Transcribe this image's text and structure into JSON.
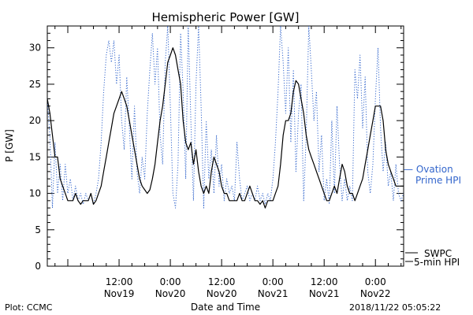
{
  "chart_data": {
    "type": "line",
    "title": "Hemispheric Power [GW]",
    "xlabel": "Date and Time",
    "ylabel": "P [GW]",
    "ylim": [
      0,
      33
    ],
    "xlim": [
      -4.8,
      78.6
    ],
    "x_units": "hours since 2018-11-19 00:00 UTC",
    "yticks": [
      0,
      5,
      10,
      15,
      20,
      25,
      30
    ],
    "xticks": [
      {
        "x": 12,
        "time": "12:00",
        "date": "Nov19"
      },
      {
        "x": 24,
        "time": "0:00",
        "date": "Nov20"
      },
      {
        "x": 36,
        "time": "12:00",
        "date": "Nov20"
      },
      {
        "x": 48,
        "time": "0:00",
        "date": "Nov21"
      },
      {
        "x": 60,
        "time": "12:00",
        "date": "Nov21"
      },
      {
        "x": 72,
        "time": "0:00",
        "date": "Nov22"
      }
    ],
    "grid": false,
    "series": [
      {
        "name": "Ovation Prime HPI",
        "legend_line1": "— Ovation",
        "legend_line2": "Prime HPI",
        "style": "dotted",
        "color": "#3366cc",
        "points": [
          [
            -4.8,
            23
          ],
          [
            -4.2,
            18
          ],
          [
            -3.6,
            8
          ],
          [
            -3.0,
            17
          ],
          [
            -2.4,
            10
          ],
          [
            -1.8,
            14
          ],
          [
            -1.2,
            9
          ],
          [
            -0.6,
            14
          ],
          [
            0.0,
            10
          ],
          [
            0.6,
            12
          ],
          [
            1.2,
            9
          ],
          [
            1.8,
            11
          ],
          [
            2.4,
            9
          ],
          [
            3.0,
            10
          ],
          [
            3.6,
            8.5
          ],
          [
            4.2,
            10
          ],
          [
            4.8,
            9
          ],
          [
            5.4,
            10
          ],
          [
            6.0,
            8.5
          ],
          [
            6.6,
            10
          ],
          [
            7.2,
            12
          ],
          [
            7.8,
            17
          ],
          [
            8.4,
            24
          ],
          [
            9.0,
            29
          ],
          [
            9.6,
            31
          ],
          [
            10.2,
            28
          ],
          [
            10.8,
            31
          ],
          [
            11.4,
            25
          ],
          [
            12.0,
            29
          ],
          [
            12.6,
            20
          ],
          [
            13.2,
            16
          ],
          [
            13.8,
            26
          ],
          [
            14.4,
            19
          ],
          [
            15.0,
            12
          ],
          [
            15.6,
            22
          ],
          [
            16.2,
            13
          ],
          [
            16.8,
            10
          ],
          [
            17.4,
            15
          ],
          [
            18.0,
            12
          ],
          [
            18.6,
            21
          ],
          [
            19.2,
            27
          ],
          [
            19.8,
            32
          ],
          [
            20.4,
            25
          ],
          [
            21.0,
            30
          ],
          [
            21.6,
            18
          ],
          [
            22.2,
            14
          ],
          [
            22.8,
            28
          ],
          [
            23.4,
            33
          ],
          [
            24.0,
            22
          ],
          [
            24.6,
            10
          ],
          [
            25.2,
            8
          ],
          [
            25.8,
            14
          ],
          [
            26.4,
            32
          ],
          [
            27.0,
            24
          ],
          [
            27.6,
            12
          ],
          [
            28.2,
            33
          ],
          [
            28.8,
            20
          ],
          [
            29.4,
            9
          ],
          [
            30.0,
            25
          ],
          [
            30.6,
            33
          ],
          [
            31.2,
            22
          ],
          [
            31.8,
            8
          ],
          [
            32.4,
            20
          ],
          [
            33.0,
            12
          ],
          [
            33.6,
            16
          ],
          [
            34.2,
            10
          ],
          [
            34.8,
            18
          ],
          [
            35.4,
            11
          ],
          [
            36.0,
            14
          ],
          [
            36.6,
            9
          ],
          [
            37.2,
            12
          ],
          [
            37.8,
            10
          ],
          [
            38.4,
            11
          ],
          [
            39.0,
            9
          ],
          [
            39.6,
            17
          ],
          [
            40.2,
            12
          ],
          [
            40.8,
            9
          ],
          [
            41.4,
            10
          ],
          [
            42.0,
            11
          ],
          [
            42.6,
            9
          ],
          [
            43.2,
            10
          ],
          [
            43.8,
            9
          ],
          [
            44.4,
            11
          ],
          [
            45.0,
            9
          ],
          [
            45.6,
            10
          ],
          [
            46.2,
            8.5
          ],
          [
            46.8,
            10
          ],
          [
            47.4,
            9
          ],
          [
            48.0,
            12
          ],
          [
            48.6,
            17
          ],
          [
            49.2,
            24
          ],
          [
            49.8,
            33
          ],
          [
            50.4,
            28
          ],
          [
            51.0,
            21
          ],
          [
            51.6,
            30
          ],
          [
            52.2,
            17
          ],
          [
            52.8,
            27
          ],
          [
            53.4,
            13
          ],
          [
            54.0,
            21
          ],
          [
            54.6,
            25
          ],
          [
            55.2,
            9
          ],
          [
            55.8,
            18
          ],
          [
            56.4,
            33
          ],
          [
            57.0,
            27
          ],
          [
            57.6,
            20
          ],
          [
            58.2,
            24
          ],
          [
            58.8,
            13
          ],
          [
            59.4,
            18
          ],
          [
            60.0,
            9
          ],
          [
            60.6,
            12
          ],
          [
            61.2,
            8.5
          ],
          [
            61.8,
            20
          ],
          [
            62.4,
            10
          ],
          [
            63.0,
            22
          ],
          [
            63.6,
            14
          ],
          [
            64.2,
            9
          ],
          [
            64.8,
            12
          ],
          [
            65.4,
            9
          ],
          [
            66.0,
            11
          ],
          [
            66.6,
            9
          ],
          [
            67.2,
            27
          ],
          [
            67.8,
            23
          ],
          [
            68.4,
            29
          ],
          [
            69.0,
            19
          ],
          [
            69.6,
            26
          ],
          [
            70.2,
            13
          ],
          [
            70.8,
            10
          ],
          [
            71.4,
            14
          ],
          [
            72.0,
            23
          ],
          [
            72.6,
            30
          ],
          [
            73.2,
            19
          ],
          [
            73.8,
            13
          ],
          [
            74.4,
            17
          ],
          [
            75.0,
            11
          ],
          [
            75.6,
            13
          ],
          [
            76.2,
            9
          ],
          [
            76.8,
            14
          ],
          [
            77.4,
            10
          ],
          [
            78.0,
            9
          ],
          [
            78.6,
            10
          ]
        ]
      },
      {
        "name": "SWPC 5-min HPI",
        "legend_line1": "SWPC",
        "legend_line2": "5-min HPI",
        "style": "solid",
        "color": "#000000",
        "points": [
          [
            -4.8,
            23
          ],
          [
            -4.2,
            21
          ],
          [
            -3.6,
            18
          ],
          [
            -3.0,
            15
          ],
          [
            -2.4,
            15
          ],
          [
            -1.8,
            12
          ],
          [
            -1.2,
            11
          ],
          [
            -0.6,
            10
          ],
          [
            0.0,
            9
          ],
          [
            0.6,
            9
          ],
          [
            1.2,
            9
          ],
          [
            1.8,
            10
          ],
          [
            2.4,
            9
          ],
          [
            3.0,
            8.5
          ],
          [
            3.6,
            9
          ],
          [
            4.2,
            9
          ],
          [
            4.8,
            9
          ],
          [
            5.4,
            10
          ],
          [
            6.0,
            8.5
          ],
          [
            6.6,
            9
          ],
          [
            7.2,
            10
          ],
          [
            7.8,
            11
          ],
          [
            8.4,
            13
          ],
          [
            9.0,
            15
          ],
          [
            9.6,
            17
          ],
          [
            10.2,
            19
          ],
          [
            10.8,
            21
          ],
          [
            11.4,
            22
          ],
          [
            12.0,
            23
          ],
          [
            12.6,
            24
          ],
          [
            13.2,
            23
          ],
          [
            13.8,
            22
          ],
          [
            14.4,
            20
          ],
          [
            15.0,
            18
          ],
          [
            15.6,
            16
          ],
          [
            16.2,
            14
          ],
          [
            16.8,
            12
          ],
          [
            17.4,
            11
          ],
          [
            18.0,
            10.5
          ],
          [
            18.6,
            10
          ],
          [
            19.2,
            10.5
          ],
          [
            19.8,
            12
          ],
          [
            20.4,
            14
          ],
          [
            21.0,
            17
          ],
          [
            21.6,
            20
          ],
          [
            22.2,
            22
          ],
          [
            22.8,
            25
          ],
          [
            23.4,
            28
          ],
          [
            24.0,
            29
          ],
          [
            24.6,
            30
          ],
          [
            25.2,
            29
          ],
          [
            25.8,
            27
          ],
          [
            26.4,
            25
          ],
          [
            27.0,
            20
          ],
          [
            27.6,
            17
          ],
          [
            28.2,
            16
          ],
          [
            28.8,
            17
          ],
          [
            29.4,
            14
          ],
          [
            30.0,
            16
          ],
          [
            30.6,
            13
          ],
          [
            31.2,
            11
          ],
          [
            31.8,
            10
          ],
          [
            32.4,
            11
          ],
          [
            33.0,
            10
          ],
          [
            33.6,
            13
          ],
          [
            34.2,
            15
          ],
          [
            34.8,
            14
          ],
          [
            35.4,
            13
          ],
          [
            36.0,
            11
          ],
          [
            36.6,
            10
          ],
          [
            37.2,
            10
          ],
          [
            37.8,
            9
          ],
          [
            38.4,
            9
          ],
          [
            39.0,
            9
          ],
          [
            39.6,
            9
          ],
          [
            40.2,
            10
          ],
          [
            40.8,
            9
          ],
          [
            41.4,
            9
          ],
          [
            42.0,
            10
          ],
          [
            42.6,
            11
          ],
          [
            43.2,
            10
          ],
          [
            43.8,
            9
          ],
          [
            44.4,
            9
          ],
          [
            45.0,
            8.5
          ],
          [
            45.6,
            9
          ],
          [
            46.2,
            8
          ],
          [
            46.8,
            9
          ],
          [
            47.4,
            9
          ],
          [
            48.0,
            9
          ],
          [
            48.6,
            10
          ],
          [
            49.2,
            11
          ],
          [
            49.8,
            14
          ],
          [
            50.4,
            18
          ],
          [
            51.0,
            20
          ],
          [
            51.6,
            20
          ],
          [
            52.2,
            21
          ],
          [
            52.8,
            24
          ],
          [
            53.4,
            25.5
          ],
          [
            54.0,
            25
          ],
          [
            54.6,
            23
          ],
          [
            55.2,
            21
          ],
          [
            55.8,
            18
          ],
          [
            56.4,
            16
          ],
          [
            57.0,
            15
          ],
          [
            57.6,
            14
          ],
          [
            58.2,
            13
          ],
          [
            58.8,
            12
          ],
          [
            59.4,
            11
          ],
          [
            60.0,
            10
          ],
          [
            60.6,
            9
          ],
          [
            61.2,
            9
          ],
          [
            61.8,
            10
          ],
          [
            62.4,
            11
          ],
          [
            63.0,
            10
          ],
          [
            63.6,
            12
          ],
          [
            64.2,
            14
          ],
          [
            64.8,
            13
          ],
          [
            65.4,
            11
          ],
          [
            66.0,
            10
          ],
          [
            66.6,
            10
          ],
          [
            67.2,
            9
          ],
          [
            67.8,
            10
          ],
          [
            68.4,
            11
          ],
          [
            69.0,
            12
          ],
          [
            69.6,
            14
          ],
          [
            70.2,
            16
          ],
          [
            70.8,
            18
          ],
          [
            71.4,
            20
          ],
          [
            72.0,
            22
          ],
          [
            72.6,
            22
          ],
          [
            73.2,
            22
          ],
          [
            73.8,
            20
          ],
          [
            74.4,
            16
          ],
          [
            75.0,
            14
          ],
          [
            75.6,
            13
          ],
          [
            76.2,
            12
          ],
          [
            76.8,
            11
          ],
          [
            77.4,
            11
          ],
          [
            78.0,
            11
          ],
          [
            78.6,
            11
          ]
        ]
      }
    ]
  },
  "footer": {
    "plot_credit": "Plot: CCMC",
    "timestamp": "2018/11/22 05:05:22"
  }
}
